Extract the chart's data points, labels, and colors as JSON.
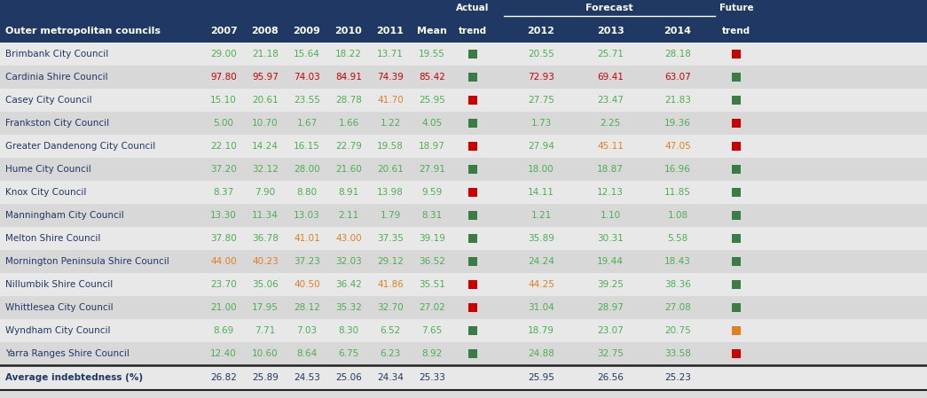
{
  "header_bg": "#1F3864",
  "body_bg": "#DCDCDC",
  "value_color_green": "#4CAF50",
  "value_color_red": "#CC0000",
  "value_color_orange": "#E08020",
  "name_color": "#1F3864",
  "avg_color": "#1F3864",
  "trend_green": "#3A7D44",
  "trend_red": "#CC0000",
  "trend_orange": "#E08020",
  "rows": [
    {
      "name": "Brimbank City Council",
      "vals": [
        "29.00",
        "21.18",
        "15.64",
        "18.22",
        "13.71",
        "19.55"
      ],
      "val_colors": [
        "g",
        "g",
        "g",
        "g",
        "g",
        "g"
      ],
      "actual_trend": "green",
      "forecast": [
        "20.55",
        "25.71",
        "28.18"
      ],
      "forecast_colors": [
        "g",
        "g",
        "g"
      ],
      "future_trend": "red"
    },
    {
      "name": "Cardinia Shire Council",
      "vals": [
        "97.80",
        "95.97",
        "74.03",
        "84.91",
        "74.39",
        "85.42"
      ],
      "val_colors": [
        "r",
        "r",
        "r",
        "r",
        "r",
        "r"
      ],
      "actual_trend": "green",
      "forecast": [
        "72.93",
        "69.41",
        "63.07"
      ],
      "forecast_colors": [
        "r",
        "r",
        "r"
      ],
      "future_trend": "green"
    },
    {
      "name": "Casey City Council",
      "vals": [
        "15.10",
        "20.61",
        "23.55",
        "28.78",
        "41.70",
        "25.95"
      ],
      "val_colors": [
        "g",
        "g",
        "g",
        "g",
        "o",
        "g"
      ],
      "actual_trend": "red",
      "forecast": [
        "27.75",
        "23.47",
        "21.83"
      ],
      "forecast_colors": [
        "g",
        "g",
        "g"
      ],
      "future_trend": "green"
    },
    {
      "name": "Frankston City Council",
      "vals": [
        "5.00",
        "10.70",
        "1.67",
        "1.66",
        "1.22",
        "4.05"
      ],
      "val_colors": [
        "g",
        "g",
        "g",
        "g",
        "g",
        "g"
      ],
      "actual_trend": "green",
      "forecast": [
        "1.73",
        "2.25",
        "19.36"
      ],
      "forecast_colors": [
        "g",
        "g",
        "g"
      ],
      "future_trend": "red"
    },
    {
      "name": "Greater Dandenong City Council",
      "vals": [
        "22.10",
        "14.24",
        "16.15",
        "22.79",
        "19.58",
        "18.97"
      ],
      "val_colors": [
        "g",
        "g",
        "g",
        "g",
        "g",
        "g"
      ],
      "actual_trend": "red",
      "forecast": [
        "27.94",
        "45.11",
        "47.05"
      ],
      "forecast_colors": [
        "g",
        "o",
        "o"
      ],
      "future_trend": "red"
    },
    {
      "name": "Hume City Council",
      "vals": [
        "37.20",
        "32.12",
        "28.00",
        "21.60",
        "20.61",
        "27.91"
      ],
      "val_colors": [
        "g",
        "g",
        "g",
        "g",
        "g",
        "g"
      ],
      "actual_trend": "green",
      "forecast": [
        "18.00",
        "18.87",
        "16.96"
      ],
      "forecast_colors": [
        "g",
        "g",
        "g"
      ],
      "future_trend": "green"
    },
    {
      "name": "Knox City Council",
      "vals": [
        "8.37",
        "7.90",
        "8.80",
        "8.91",
        "13.98",
        "9.59"
      ],
      "val_colors": [
        "g",
        "g",
        "g",
        "g",
        "g",
        "g"
      ],
      "actual_trend": "red",
      "forecast": [
        "14.11",
        "12.13",
        "11.85"
      ],
      "forecast_colors": [
        "g",
        "g",
        "g"
      ],
      "future_trend": "green"
    },
    {
      "name": "Manningham City Council",
      "vals": [
        "13.30",
        "11.34",
        "13.03",
        "2.11",
        "1.79",
        "8.31"
      ],
      "val_colors": [
        "g",
        "g",
        "g",
        "g",
        "g",
        "g"
      ],
      "actual_trend": "green",
      "forecast": [
        "1.21",
        "1.10",
        "1.08"
      ],
      "forecast_colors": [
        "g",
        "g",
        "g"
      ],
      "future_trend": "green"
    },
    {
      "name": "Melton Shire Council",
      "vals": [
        "37.80",
        "36.78",
        "41.01",
        "43.00",
        "37.35",
        "39.19"
      ],
      "val_colors": [
        "g",
        "g",
        "o",
        "o",
        "g",
        "g"
      ],
      "actual_trend": "green",
      "forecast": [
        "35.89",
        "30.31",
        "5.58"
      ],
      "forecast_colors": [
        "g",
        "g",
        "g"
      ],
      "future_trend": "green"
    },
    {
      "name": "Mornington Peninsula Shire Council",
      "vals": [
        "44.00",
        "40.23",
        "37.23",
        "32.03",
        "29.12",
        "36.52"
      ],
      "val_colors": [
        "o",
        "o",
        "g",
        "g",
        "g",
        "g"
      ],
      "actual_trend": "green",
      "forecast": [
        "24.24",
        "19.44",
        "18.43"
      ],
      "forecast_colors": [
        "g",
        "g",
        "g"
      ],
      "future_trend": "green"
    },
    {
      "name": "Nillumbik Shire Council",
      "vals": [
        "23.70",
        "35.06",
        "40.50",
        "36.42",
        "41.86",
        "35.51"
      ],
      "val_colors": [
        "g",
        "g",
        "o",
        "g",
        "o",
        "g"
      ],
      "actual_trend": "red",
      "forecast": [
        "44.25",
        "39.25",
        "38.36"
      ],
      "forecast_colors": [
        "o",
        "g",
        "g"
      ],
      "future_trend": "green"
    },
    {
      "name": "Whittlesea City Council",
      "vals": [
        "21.00",
        "17.95",
        "28.12",
        "35.32",
        "32.70",
        "27.02"
      ],
      "val_colors": [
        "g",
        "g",
        "g",
        "g",
        "g",
        "g"
      ],
      "actual_trend": "red",
      "forecast": [
        "31.04",
        "28.97",
        "27.08"
      ],
      "forecast_colors": [
        "g",
        "g",
        "g"
      ],
      "future_trend": "green"
    },
    {
      "name": "Wyndham City Council",
      "vals": [
        "8.69",
        "7.71",
        "7.03",
        "8.30",
        "6.52",
        "7.65"
      ],
      "val_colors": [
        "g",
        "g",
        "g",
        "g",
        "g",
        "g"
      ],
      "actual_trend": "green",
      "forecast": [
        "18.79",
        "23.07",
        "20.75"
      ],
      "forecast_colors": [
        "g",
        "g",
        "g"
      ],
      "future_trend": "orange"
    },
    {
      "name": "Yarra Ranges Shire Council",
      "vals": [
        "12.40",
        "10.60",
        "8.64",
        "6.75",
        "6.23",
        "8.92"
      ],
      "val_colors": [
        "g",
        "g",
        "g",
        "g",
        "g",
        "g"
      ],
      "actual_trend": "green",
      "forecast": [
        "24.88",
        "32.75",
        "33.58"
      ],
      "forecast_colors": [
        "g",
        "g",
        "g"
      ],
      "future_trend": "red"
    }
  ],
  "avg_row": {
    "label": "Average indebtedness (%)",
    "vals": [
      "26.82",
      "25.89",
      "24.53",
      "25.06",
      "24.34",
      "25.33"
    ],
    "forecast": [
      "25.95",
      "26.56",
      "25.23"
    ]
  },
  "col_positions": {
    "name": 4,
    "2007": 228,
    "2008": 276,
    "2009": 323,
    "2010": 370,
    "2011": 417,
    "mean": 464,
    "actual_trend": 510,
    "2012": 570,
    "2013": 650,
    "2014": 728,
    "future_trend": 806
  },
  "col_centers": {
    "2007": 252,
    "2008": 299,
    "2009": 346,
    "2010": 393,
    "2011": 440,
    "mean": 487,
    "actual_trend": 533,
    "2012": 610,
    "2013": 688,
    "2014": 764,
    "future_trend": 830
  }
}
